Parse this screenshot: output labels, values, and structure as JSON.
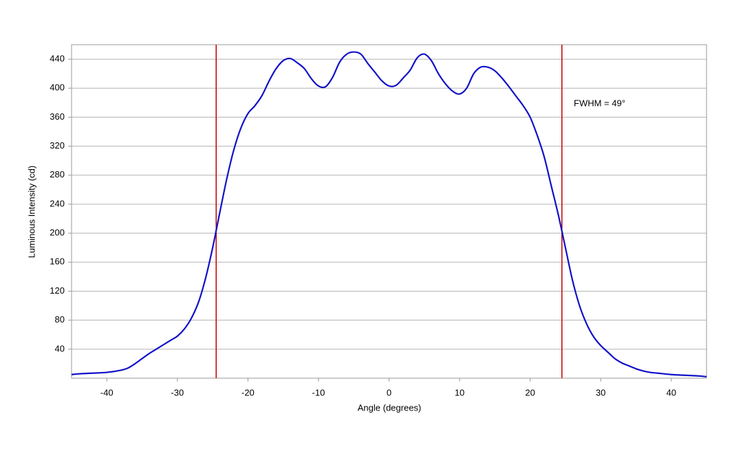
{
  "chart_data": {
    "type": "line",
    "xlabel": "Angle (degrees)",
    "ylabel": "Luminous Intensity (cd)",
    "annotation": "FWHM = 49°",
    "x": [
      -45,
      -44,
      -42,
      -40,
      -38,
      -37,
      -36,
      -35,
      -34,
      -33,
      -32,
      -31,
      -30,
      -29,
      -28,
      -27,
      -26,
      -25,
      -24,
      -23,
      -22,
      -21,
      -20,
      -19,
      -18,
      -17,
      -16,
      -15,
      -14,
      -13,
      -12,
      -11,
      -10,
      -9,
      -8,
      -7,
      -6,
      -5,
      -4,
      -3,
      -2,
      -1,
      0,
      1,
      2,
      3,
      4,
      5,
      6,
      7,
      8,
      9,
      10,
      11,
      12,
      13,
      14,
      15,
      16,
      17,
      18,
      19,
      20,
      21,
      22,
      23,
      24,
      25,
      26,
      27,
      28,
      29,
      30,
      31,
      32,
      33,
      34,
      35,
      36,
      37,
      38,
      40,
      42,
      44,
      45
    ],
    "series": [
      {
        "color": "#1010c8",
        "values": [
          5,
          6,
          7,
          8,
          11,
          14,
          20,
          27,
          34,
          40,
          46,
          52,
          58,
          68,
          83,
          105,
          138,
          180,
          228,
          275,
          315,
          345,
          365,
          376,
          390,
          410,
          427,
          438,
          441,
          435,
          427,
          413,
          403,
          402,
          415,
          436,
          447,
          450,
          447,
          434,
          422,
          410,
          403,
          404,
          414,
          425,
          442,
          447,
          438,
          420,
          406,
          396,
          392,
          400,
          420,
          429,
          429,
          424,
          414,
          402,
          389,
          376,
          360,
          335,
          305,
          265,
          225,
          180,
          135,
          100,
          75,
          57,
          45,
          36,
          27,
          21,
          17,
          13,
          10,
          8,
          7,
          5,
          4,
          3,
          2
        ]
      }
    ],
    "vlines": [
      -24.5,
      24.5
    ],
    "vline_color": "#c00000",
    "xlim": [
      -45,
      45
    ],
    "xticks": [
      -40,
      -30,
      -20,
      -10,
      0,
      10,
      20,
      30,
      40
    ],
    "ylim": [
      0,
      460
    ],
    "yticks": [
      40,
      80,
      120,
      160,
      200,
      240,
      280,
      320,
      360,
      400,
      440
    ],
    "grid": true
  }
}
